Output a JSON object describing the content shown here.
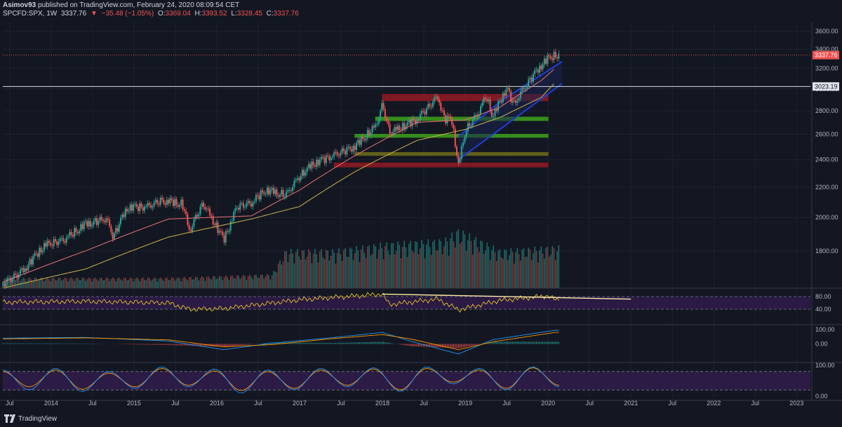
{
  "header": {
    "author": "Asimov93",
    "published": "published on TradingView.com, February 24, 2020 08:09:54 CET",
    "symbol": "SPCFD:SPX, 1W",
    "last": "3337.76",
    "arrow": "▼",
    "change": "−35.48 (−1.05%)",
    "o_label": "O:",
    "o": "3369.04",
    "h_label": "H:",
    "h": "3393.52",
    "l_label": "L:",
    "l": "3328.45",
    "c_label": "C:",
    "c": "3337.76"
  },
  "brand": {
    "name": "TradingView"
  },
  "colors": {
    "background": "#131722",
    "up": "#26a69a",
    "down": "#ef5350",
    "ma_fast": "#e57373",
    "ma_slow": "#c9b24a",
    "rsi": "#e6c229",
    "macd": "#2196f3",
    "signal": "#ff9800",
    "stoch_k": "#2196f3",
    "stoch_d": "#ff9800",
    "zone_red": "#8b1a24",
    "zone_green": "#3a9a1a",
    "zone_olive": "#6b6a1a",
    "channel": "#1e3fd8",
    "band": "#2d1b48"
  },
  "chart_data": {
    "type": "candlestick",
    "title": "",
    "xlabel": "",
    "ylabel": "",
    "x_range": [
      "2013-06",
      "2023-03"
    ],
    "ylim": [
      1600,
      3700
    ],
    "scale": "log",
    "x_ticks": [
      "Jul",
      "2014",
      "Jul",
      "2015",
      "Jul",
      "2016",
      "Jul",
      "2017",
      "Jul",
      "2018",
      "Jul",
      "2019",
      "Jul",
      "2020",
      "Jul",
      "2021",
      "Jul",
      "2022",
      "Jul",
      "2023"
    ],
    "y_ticks": [
      "3600.00",
      "3400.00",
      "3200.00",
      "3000.00",
      "2800.00",
      "2600.00",
      "2400.00",
      "2200.00",
      "2000.00",
      "1800.00"
    ],
    "last_price_label": "3337.76",
    "horizontal_line_label": "3023.19",
    "horizontal_line_value": 3023.19,
    "price_series": {
      "dates": [
        "2013-06",
        "2013-09",
        "2013-12",
        "2014-03",
        "2014-06",
        "2014-09",
        "2014-10",
        "2014-12",
        "2015-03",
        "2015-05",
        "2015-08",
        "2015-09",
        "2015-11",
        "2016-01",
        "2016-02",
        "2016-04",
        "2016-06",
        "2016-08",
        "2016-11",
        "2017-01",
        "2017-03",
        "2017-06",
        "2017-09",
        "2017-12",
        "2018-01",
        "2018-02",
        "2018-03",
        "2018-06",
        "2018-09",
        "2018-10",
        "2018-11",
        "2018-12",
        "2019-01",
        "2019-03",
        "2019-04",
        "2019-05",
        "2019-07",
        "2019-08",
        "2019-10",
        "2019-12",
        "2020-01",
        "2020-02"
      ],
      "close": [
        1620,
        1690,
        1830,
        1870,
        1960,
        1990,
        1880,
        2060,
        2070,
        2110,
        2090,
        1920,
        2090,
        1940,
        1860,
        2070,
        2090,
        2180,
        2150,
        2280,
        2370,
        2430,
        2500,
        2670,
        2860,
        2620,
        2640,
        2720,
        2920,
        2720,
        2740,
        2350,
        2630,
        2800,
        2940,
        2750,
        3010,
        2850,
        3050,
        3230,
        3300,
        3338
      ]
    },
    "moving_averages": [
      {
        "dates": [
          "2013-06",
          "2014-06",
          "2015-06",
          "2016-06",
          "2017-01",
          "2017-09",
          "2018-06",
          "2019-01",
          "2019-06",
          "2019-12",
          "2020-02"
        ],
        "values": [
          1630,
          1800,
          1990,
          2010,
          2180,
          2430,
          2700,
          2720,
          2830,
          3080,
          3200
        ]
      },
      {
        "dates": [
          "2013-06",
          "2014-06",
          "2015-06",
          "2016-06",
          "2017-01",
          "2017-09",
          "2018-06",
          "2019-01",
          "2019-06",
          "2019-12",
          "2020-02"
        ],
        "values": [
          1600,
          1700,
          1880,
          1990,
          2070,
          2310,
          2550,
          2640,
          2740,
          2920,
          3060
        ]
      }
    ],
    "zones": [
      {
        "color": "red",
        "low": 2890,
        "high": 2950,
        "from": "2018-01",
        "to": "2020-01"
      },
      {
        "color": "green",
        "low": 2715,
        "high": 2745,
        "from": "2017-12",
        "to": "2020-01"
      },
      {
        "color": "green",
        "low": 2575,
        "high": 2600,
        "from": "2017-09",
        "to": "2020-01"
      },
      {
        "color": "olive",
        "low": 2432,
        "high": 2455,
        "from": "2017-09",
        "to": "2020-01"
      },
      {
        "color": "red",
        "low": 2345,
        "high": 2375,
        "from": "2017-06",
        "to": "2020-01"
      }
    ],
    "channel": {
      "upper": [
        [
          "2018-12",
          2580
        ],
        [
          "2019-06",
          2880
        ],
        [
          "2020-03",
          3270
        ]
      ],
      "lower": [
        [
          "2018-12",
          2400
        ],
        [
          "2019-06",
          2640
        ],
        [
          "2020-03",
          3050
        ]
      ]
    },
    "volume": {
      "dates": [
        "2013-06",
        "2015-06",
        "2016-09",
        "2016-11",
        "2017-06",
        "2018-02",
        "2018-10",
        "2018-12",
        "2019-06",
        "2020-02"
      ],
      "values": [
        0.15,
        0.15,
        0.2,
        0.55,
        0.55,
        0.65,
        0.7,
        0.85,
        0.55,
        0.6
      ]
    },
    "rsi": {
      "levels": [
        "80.00",
        "40.00"
      ],
      "values_dates": [
        "2013-06",
        "2014-06",
        "2015-06",
        "2015-09",
        "2016-02",
        "2017-01",
        "2018-01",
        "2018-02",
        "2018-09",
        "2018-12",
        "2019-06",
        "2020-01",
        "2020-02"
      ],
      "values": [
        62,
        65,
        60,
        40,
        42,
        70,
        88,
        55,
        72,
        38,
        68,
        82,
        70
      ],
      "trendline": [
        [
          "2018-01",
          88
        ],
        [
          "2021-01",
          72
        ]
      ]
    },
    "macd": {
      "ticks": [
        "100.00",
        "0.00"
      ],
      "dates": [
        "2013-06",
        "2014-06",
        "2015-06",
        "2016-02",
        "2016-09",
        "2017-06",
        "2018-01",
        "2018-05",
        "2018-12",
        "2019-05",
        "2020-02"
      ],
      "macd": [
        40,
        45,
        20,
        -40,
        5,
        45,
        80,
        20,
        -70,
        30,
        95
      ],
      "signal": [
        35,
        42,
        28,
        -20,
        -5,
        38,
        65,
        35,
        -40,
        15,
        80
      ]
    },
    "stochastic": {
      "ticks": [
        "100.00",
        "0.00"
      ],
      "k": [
        85,
        20,
        90,
        15,
        80,
        25,
        95,
        30,
        88,
        10,
        85,
        20,
        90,
        30,
        92,
        15,
        95,
        40,
        90,
        20,
        95,
        30
      ],
      "d": [
        80,
        30,
        85,
        22,
        75,
        30,
        90,
        35,
        82,
        18,
        80,
        25,
        85,
        35,
        88,
        20,
        90,
        45,
        85,
        25,
        92,
        35
      ]
    }
  }
}
